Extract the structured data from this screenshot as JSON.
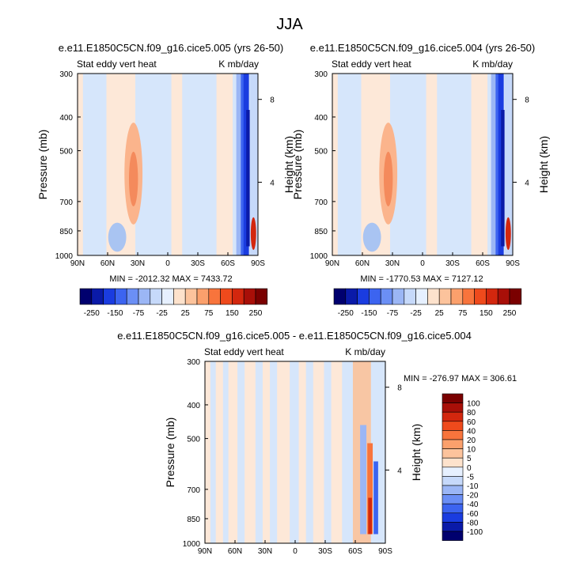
{
  "page": {
    "title": "JJA"
  },
  "colors": {
    "frame": "#000000",
    "contour_levels": [
      "#00006e",
      "#0a1aa8",
      "#1a3ce0",
      "#3c64f0",
      "#6b8ff5",
      "#9bb6f5",
      "#c6d9fa",
      "#e6f0ff",
      "#fde2cc",
      "#fcc39c",
      "#fba06c",
      "#f8743c",
      "#ef4a1c",
      "#d3270e",
      "#a80f08",
      "#7a0000"
    ],
    "diff_levels": [
      "#00006e",
      "#0a1aa8",
      "#1a3ce0",
      "#3c64f0",
      "#6b8ff5",
      "#9bb6f5",
      "#c6d9fa",
      "#e6f0ff",
      "#fde2cc",
      "#fcc39c",
      "#fba06c",
      "#f8743c",
      "#ef4a1c",
      "#d3270e",
      "#a80f08",
      "#7a0000"
    ]
  },
  "chart_data": [
    {
      "type": "heatmap",
      "title": "e.e11.E1850C5CN.f09_g16.cice5.005 (yrs 26-50)",
      "left_label": "Stat eddy vert heat",
      "right_label": "K mb/day",
      "xlabel": "",
      "ylabel": "Pressure (mb)",
      "y2label": "Height (km)",
      "x_ticks": [
        "90N",
        "60N",
        "30N",
        "0",
        "30S",
        "60S",
        "90S"
      ],
      "y_ticks": [
        "300",
        "400",
        "500",
        "700",
        "850",
        "1000"
      ],
      "y2_ticks": [
        "8",
        "4"
      ],
      "stats": "MIN = -2012.32   MAX = 7433.72",
      "colorbar_labels": [
        "-250",
        "-150",
        "-75",
        "-25",
        "25",
        "75",
        "150",
        "250"
      ]
    },
    {
      "type": "heatmap",
      "title": "e.e11.E1850C5CN.f09_g16.cice5.004 (yrs 26-50)",
      "left_label": "Stat eddy vert heat",
      "right_label": "K mb/day",
      "xlabel": "",
      "ylabel": "Pressure (mb)",
      "y2label": "Height (km)",
      "x_ticks": [
        "90N",
        "60N",
        "30N",
        "0",
        "30S",
        "60S",
        "90S"
      ],
      "y_ticks": [
        "300",
        "400",
        "500",
        "700",
        "850",
        "1000"
      ],
      "y2_ticks": [
        "8",
        "4"
      ],
      "stats": "MIN = -1770.53   MAX = 7127.12",
      "colorbar_labels": [
        "-250",
        "-150",
        "-75",
        "-25",
        "25",
        "75",
        "150",
        "250"
      ]
    },
    {
      "type": "heatmap",
      "title": "e.e11.E1850C5CN.f09_g16.cice5.005 - e.e11.E1850C5CN.f09_g16.cice5.004",
      "left_label": "Stat eddy vert heat",
      "right_label": "K mb/day",
      "xlabel": "",
      "ylabel": "Pressure (mb)",
      "y2label": "Height (km)",
      "x_ticks": [
        "90N",
        "60N",
        "30N",
        "0",
        "30S",
        "60S",
        "90S"
      ],
      "y_ticks": [
        "300",
        "400",
        "500",
        "700",
        "850",
        "1000"
      ],
      "y2_ticks": [
        "8",
        "4"
      ],
      "stats": "MIN = -276.97   MAX = 306.61",
      "colorbar_labels": [
        "100",
        "80",
        "60",
        "40",
        "20",
        "10",
        "5",
        "0",
        "-5",
        "-10",
        "-20",
        "-40",
        "-60",
        "-80",
        "-100"
      ]
    }
  ]
}
